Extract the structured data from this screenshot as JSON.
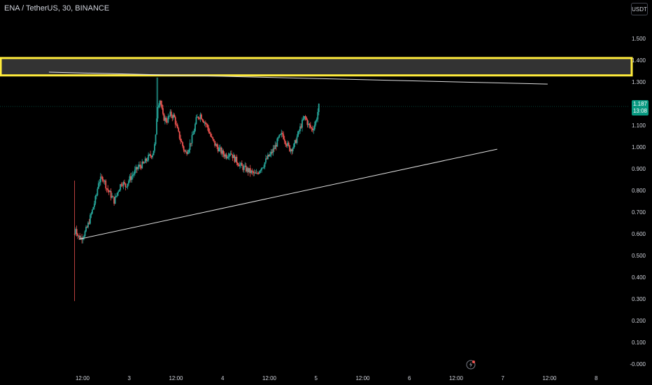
{
  "header": {
    "symbol": "ENA / TetherUS, 30, BINANCE",
    "currency": "USDT"
  },
  "price_tag": {
    "price": "1.187",
    "countdown": "13:08"
  },
  "icons": {
    "bolt": "lightning-bolt-icon"
  },
  "colors": {
    "up": "#26a69a",
    "down": "#ef5350",
    "zone_border": "#ffeb3b",
    "zone_fill": "#333333",
    "trendline": "#e0e0e0",
    "last_price": "#089981"
  },
  "chart_data": {
    "type": "candlestick",
    "symbol": "ENA / TetherUS, 30, BINANCE",
    "y_ticks": [
      "1.500",
      "1.400",
      "1.300",
      "1.200",
      "1.100",
      "1.000",
      "0.900",
      "0.800",
      "0.700",
      "0.600",
      "0.500",
      "0.400",
      "0.300",
      "0.200",
      "0.100",
      "-0.000"
    ],
    "y_tick_values": [
      1.5,
      1.4,
      1.3,
      1.2,
      1.1,
      1.0,
      0.9,
      0.8,
      0.7,
      0.6,
      0.5,
      0.4,
      0.3,
      0.2,
      0.1,
      0.0
    ],
    "x_ticks": [
      {
        "label": "12:00",
        "t": 0
      },
      {
        "label": "3",
        "t": 0.5
      },
      {
        "label": "12:00",
        "t": 1
      },
      {
        "label": "4",
        "t": 1.5
      },
      {
        "label": "12:00",
        "t": 2
      },
      {
        "label": "5",
        "t": 2.5
      },
      {
        "label": "12:00",
        "t": 3
      },
      {
        "label": "6",
        "t": 3.5
      },
      {
        "label": "12:00",
        "t": 4
      },
      {
        "label": "7",
        "t": 4.5
      },
      {
        "label": "12:00",
        "t": 5
      },
      {
        "label": "8",
        "t": 5.5
      }
    ],
    "ylim": [
      0,
      1.55
    ],
    "last_price": 1.187,
    "resistance_zone": {
      "top": 1.41,
      "bottom": 1.33
    },
    "trendlines": [
      {
        "name": "upper",
        "points": [
          [
            -0.36,
            1.345
          ],
          [
            4.98,
            1.29
          ]
        ]
      },
      {
        "name": "lower",
        "points": [
          [
            -0.04,
            0.575
          ],
          [
            4.44,
            0.99
          ]
        ]
      }
    ],
    "close_path": [
      [
        -0.085,
        0.6
      ],
      [
        -0.08,
        0.64
      ],
      [
        -0.05,
        0.59
      ],
      [
        -0.02,
        0.58
      ],
      [
        0.02,
        0.6
      ],
      [
        0.05,
        0.63
      ],
      [
        0.1,
        0.7
      ],
      [
        0.15,
        0.78
      ],
      [
        0.17,
        0.84
      ],
      [
        0.22,
        0.86
      ],
      [
        0.26,
        0.81
      ],
      [
        0.3,
        0.78
      ],
      [
        0.34,
        0.75
      ],
      [
        0.38,
        0.8
      ],
      [
        0.42,
        0.84
      ],
      [
        0.46,
        0.82
      ],
      [
        0.5,
        0.85
      ],
      [
        0.55,
        0.88
      ],
      [
        0.6,
        0.91
      ],
      [
        0.65,
        0.92
      ],
      [
        0.7,
        0.95
      ],
      [
        0.75,
        0.97
      ],
      [
        0.78,
        1.02
      ],
      [
        0.8,
        1.19
      ],
      [
        0.83,
        1.22
      ],
      [
        0.86,
        1.14
      ],
      [
        0.9,
        1.12
      ],
      [
        0.94,
        1.15
      ],
      [
        0.98,
        1.14
      ],
      [
        1.02,
        1.07
      ],
      [
        1.06,
        1.02
      ],
      [
        1.1,
        0.97
      ],
      [
        1.14,
        1.0
      ],
      [
        1.18,
        1.05
      ],
      [
        1.22,
        1.13
      ],
      [
        1.26,
        1.15
      ],
      [
        1.3,
        1.12
      ],
      [
        1.34,
        1.09
      ],
      [
        1.38,
        1.04
      ],
      [
        1.42,
        1.01
      ],
      [
        1.46,
        0.99
      ],
      [
        1.5,
        0.97
      ],
      [
        1.54,
        0.96
      ],
      [
        1.58,
        0.98
      ],
      [
        1.62,
        0.95
      ],
      [
        1.66,
        0.93
      ],
      [
        1.7,
        0.91
      ],
      [
        1.74,
        0.9
      ],
      [
        1.78,
        0.89
      ],
      [
        1.82,
        0.88
      ],
      [
        1.86,
        0.87
      ],
      [
        1.9,
        0.9
      ],
      [
        1.94,
        0.92
      ],
      [
        1.98,
        0.95
      ],
      [
        2.02,
        0.97
      ],
      [
        2.06,
        1.0
      ],
      [
        2.1,
        1.04
      ],
      [
        2.14,
        1.06
      ],
      [
        2.18,
        1.02
      ],
      [
        2.22,
        0.99
      ],
      [
        2.26,
        1.0
      ],
      [
        2.3,
        1.05
      ],
      [
        2.34,
        1.1
      ],
      [
        2.38,
        1.14
      ],
      [
        2.42,
        1.1
      ],
      [
        2.46,
        1.08
      ],
      [
        2.5,
        1.12
      ],
      [
        2.53,
        1.187
      ]
    ],
    "candles_count": 236
  }
}
